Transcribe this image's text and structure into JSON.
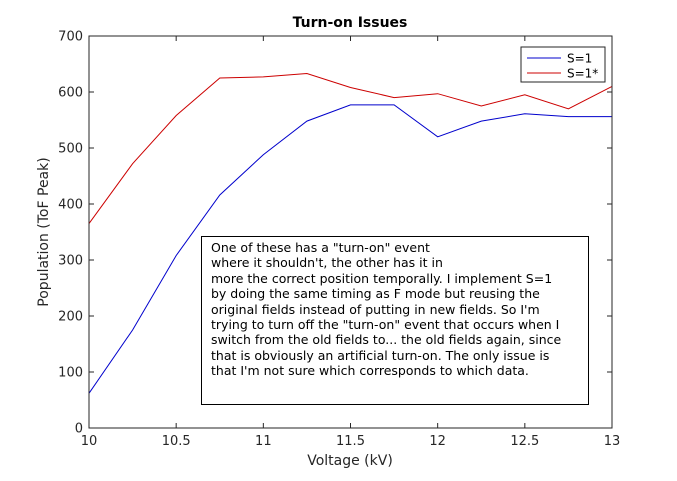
{
  "chart_data": {
    "type": "line",
    "title": "Turn-on Issues",
    "xlabel": "Voltage (kV)",
    "ylabel": "Population (ToF Peak)",
    "xlim": [
      10,
      13
    ],
    "ylim": [
      0,
      700
    ],
    "xticks": [
      10,
      10.5,
      11,
      11.5,
      12,
      12.5,
      13
    ],
    "xtick_labels": [
      "10",
      "10.5",
      "11",
      "11.5",
      "12",
      "12.5",
      "13"
    ],
    "yticks": [
      0,
      100,
      200,
      300,
      400,
      500,
      600,
      700
    ],
    "ytick_labels": [
      "0",
      "100",
      "200",
      "300",
      "400",
      "500",
      "600",
      "700"
    ],
    "x": [
      10,
      10.25,
      10.5,
      10.75,
      11,
      11.25,
      11.5,
      11.75,
      12,
      12.25,
      12.5,
      12.75,
      13
    ],
    "series": [
      {
        "name": "S=1",
        "color": "#0000cc",
        "values": [
          62,
          175,
          308,
          416,
          488,
          548,
          577,
          577,
          520,
          548,
          561,
          556,
          556
        ]
      },
      {
        "name": "S=1*",
        "color": "#cc0000",
        "values": [
          365,
          472,
          558,
          625,
          627,
          633,
          608,
          590,
          597,
          575,
          595,
          570,
          610
        ]
      }
    ],
    "legend_position": "top-right",
    "grid": false,
    "annotation": [
      "One of these has a \"turn-on\" event",
      "where it shouldn't, the other has it in",
      "more the correct position temporally. I implement S=1",
      "by doing the same timing as F mode but reusing the",
      "original fields instead of putting in new fields. So I'm",
      "trying to turn off the \"turn-on\" event that occurs when I",
      "switch from the old fields to... the old fields again, since",
      "that is obviously an artificial turn-on. The only issue is",
      "that I'm not sure which corresponds to which data."
    ]
  }
}
